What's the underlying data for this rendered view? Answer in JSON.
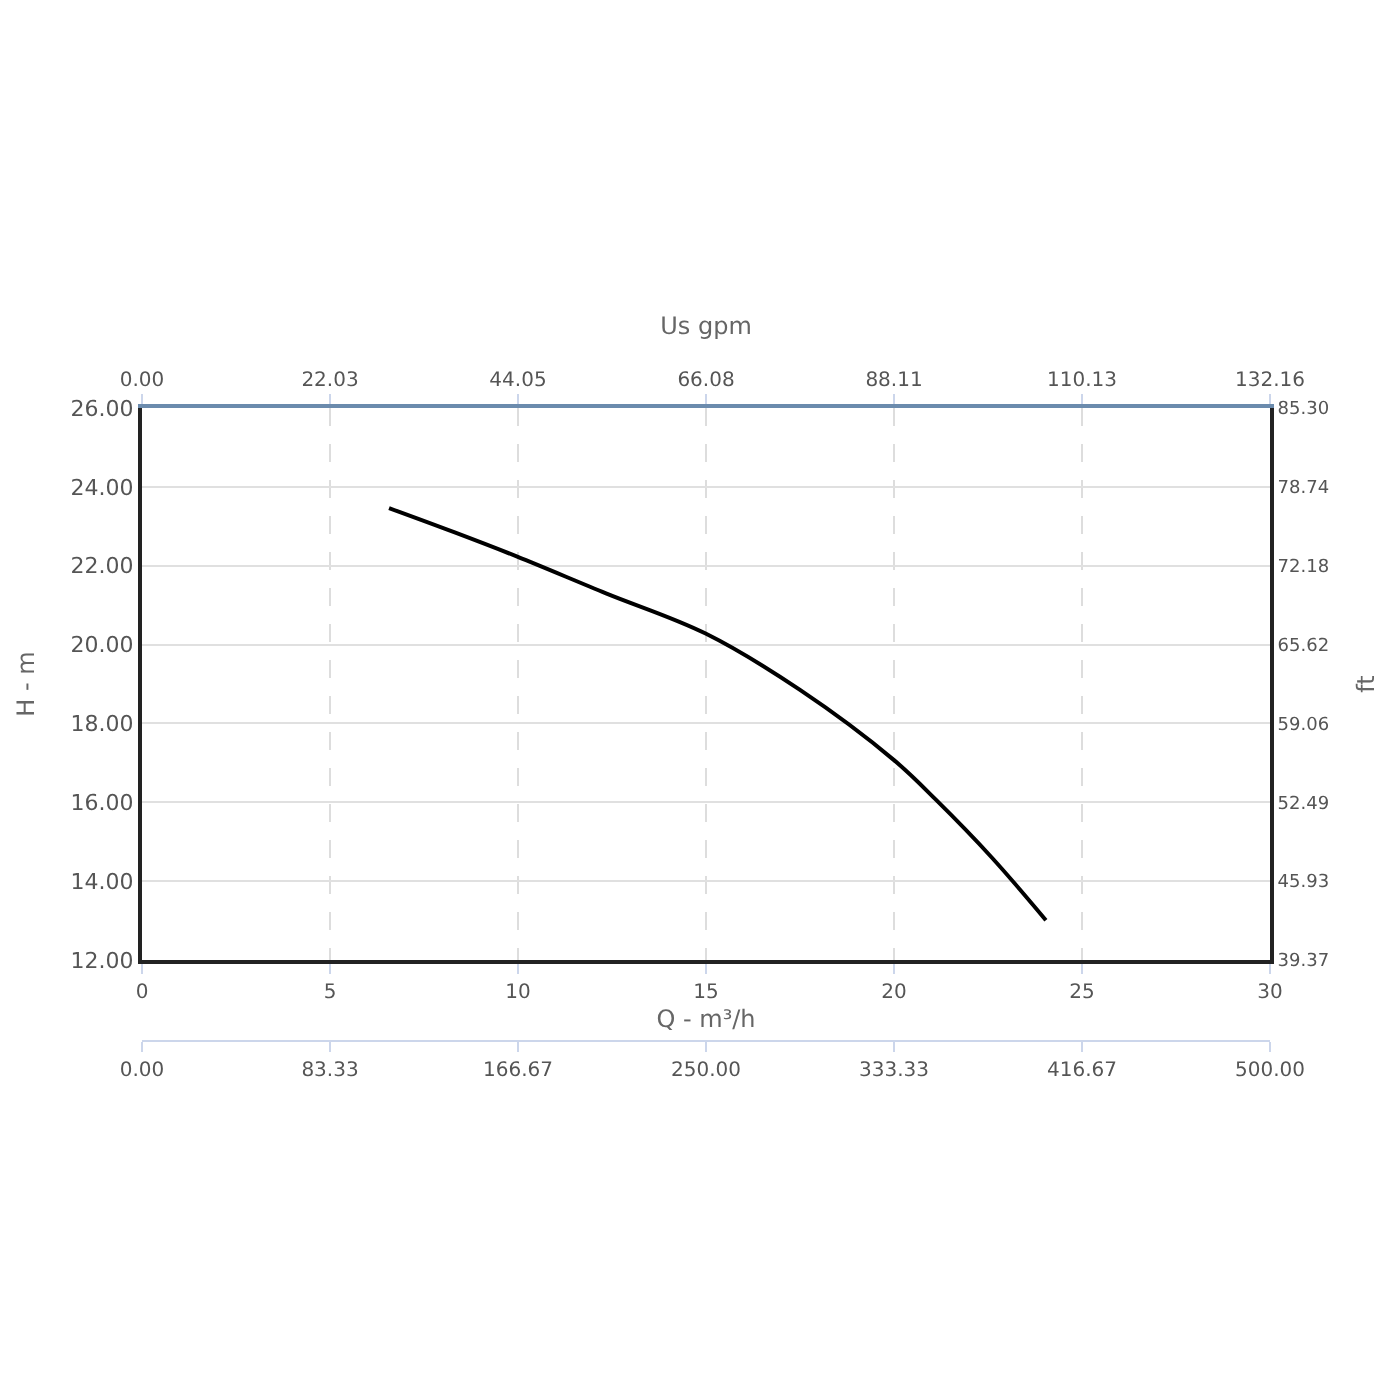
{
  "chart_data": {
    "type": "line",
    "xlabel": "Q - m³/h",
    "ylabel": "H - m",
    "y2label": "ft",
    "x2label": "Us gpm",
    "x": [
      6.57,
      8.3,
      9.98,
      12.34,
      14.99,
      17.5,
      20.0,
      21.12,
      22.6,
      24.04
    ],
    "series": [
      {
        "color": "#000000",
        "values": [
          23.46,
          22.85,
          22.23,
          21.3,
          20.28,
          18.85,
          17.07,
          16.06,
          14.6,
          13.01
        ]
      }
    ],
    "xlim": [
      0,
      30
    ],
    "xticks": [
      0,
      5,
      10,
      15,
      20,
      25,
      30
    ],
    "ylim": [
      12,
      26
    ],
    "yticks": [
      {
        "value": 12,
        "label": "12.00"
      },
      {
        "value": 14,
        "label": "14.00"
      },
      {
        "value": 16,
        "label": "16.00"
      },
      {
        "value": 18,
        "label": "18.00"
      },
      {
        "value": 20,
        "label": "20.00"
      },
      {
        "value": 22,
        "label": "22.00"
      },
      {
        "value": 24,
        "label": "24.00"
      },
      {
        "value": 26,
        "label": "26.00"
      }
    ],
    "x2lim": [
      0,
      132.16
    ],
    "x2ticks": [
      {
        "value": 0,
        "label": "0.00"
      },
      22.03,
      44.05,
      66.08,
      88.11,
      110.13,
      132.16
    ],
    "y2lim": [
      39.37,
      85.3
    ],
    "y2ticks": [
      39.37,
      45.93,
      52.49,
      59.06,
      65.62,
      72.18,
      78.74,
      {
        "value": 85.3,
        "label": "85.30"
      }
    ],
    "annotations": [
      "0.00",
      "83.33",
      "166.67",
      "250.00",
      "333.33",
      "416.67",
      "500.00"
    ],
    "grid": true,
    "marker": "none",
    "line_style": "solid"
  }
}
